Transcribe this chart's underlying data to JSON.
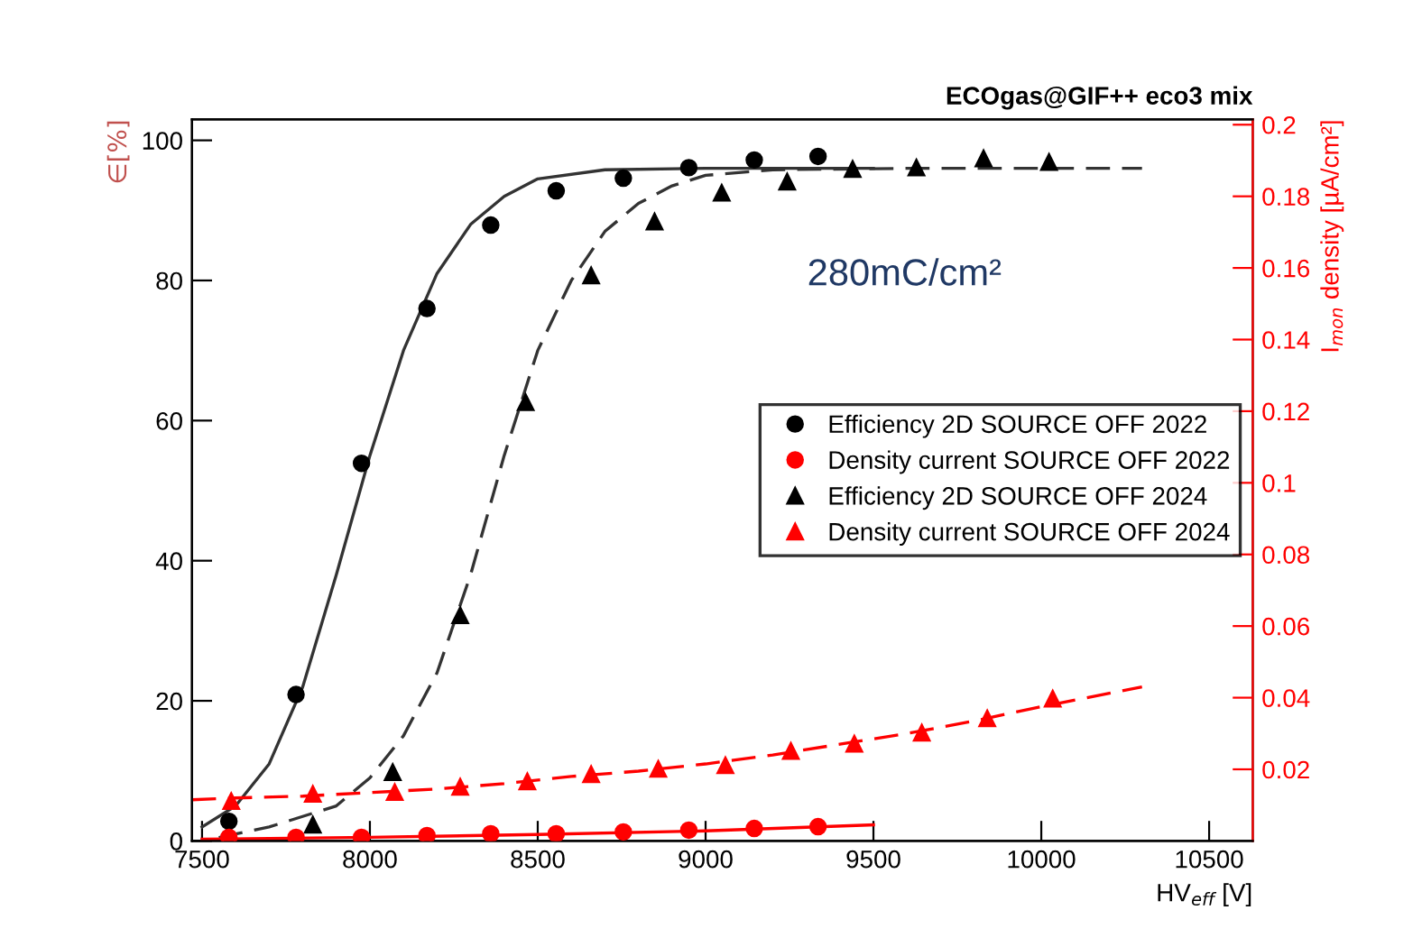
{
  "chart_data": {
    "type": "scatter",
    "title": "ECOgas@GIF++ eco3 mix",
    "xlabel": "HV$_{eff}$ [V]",
    "ylabel": "∈[%]",
    "y2label": "I$_{mon}$ density [µA/cm²]",
    "annotations": [
      "280mC/cm²"
    ],
    "xlim": [
      7470,
      10630
    ],
    "xticks": [
      7500,
      8000,
      8500,
      9000,
      9500,
      10000,
      10500
    ],
    "ylim": [
      0,
      103
    ],
    "yticks": [
      0,
      20,
      40,
      60,
      80,
      100
    ],
    "y2lim": [
      0,
      0.2015
    ],
    "y2ticks": [
      0.02,
      0.04,
      0.06,
      0.08,
      0.1,
      0.12,
      0.14,
      0.16,
      0.18,
      0.2
    ],
    "grid": false,
    "legend": "right",
    "series": [
      {
        "name": "Efficiency 2D SOURCE OFF 2022",
        "marker": "circle",
        "color": "#000000",
        "x": [
          7580,
          7780,
          7975,
          8170,
          8360,
          8555,
          8755,
          8950,
          9145,
          9335
        ],
        "values": [
          2.8,
          20.9,
          53.9,
          76.0,
          87.9,
          92.8,
          94.6,
          96.1,
          97.2,
          97.7
        ]
      },
      {
        "name": "Density current SOURCE OFF 2022",
        "marker": "circle",
        "color": "#ff0000",
        "axis": "y2",
        "x": [
          7580,
          7780,
          7975,
          8170,
          8360,
          8555,
          8755,
          8950,
          9145,
          9335
        ],
        "values": [
          0.001,
          0.001,
          0.001,
          0.0015,
          0.002,
          0.002,
          0.0025,
          0.003,
          0.0035,
          0.004
        ]
      },
      {
        "name": "Efficiency 2D SOURCE OFF 2024",
        "marker": "triangle",
        "color": "#000000",
        "x": [
          7830,
          8068,
          8269,
          8464,
          8659,
          8848,
          9048,
          9243,
          9438,
          9628,
          9828,
          10023
        ],
        "values": [
          2.3,
          9.8,
          32.2,
          62.6,
          80.7,
          88.4,
          92.5,
          94.1,
          95.9,
          96.1,
          97.4,
          96.9
        ]
      },
      {
        "name": "Density current SOURCE OFF 2024",
        "marker": "triangle",
        "color": "#ff0000",
        "axis": "y2",
        "x": [
          7587,
          7830,
          8074,
          8269,
          8469,
          8659,
          8859,
          9059,
          9254,
          9443,
          9644,
          9839,
          10034
        ],
        "values": [
          0.0111,
          0.0131,
          0.0136,
          0.0151,
          0.0166,
          0.0186,
          0.0201,
          0.0211,
          0.0251,
          0.0271,
          0.0302,
          0.0342,
          0.0397
        ]
      },
      {
        "type": "line",
        "line_style": "solid",
        "color": "#333333",
        "x": [
          7500,
          7600,
          7700,
          7800,
          7900,
          8000,
          8100,
          8200,
          8300,
          8400,
          8500,
          8700,
          9000,
          9500
        ],
        "values": [
          2,
          5,
          11,
          22,
          38,
          55,
          70,
          81,
          88,
          92,
          94.5,
          95.8,
          96,
          96
        ]
      },
      {
        "type": "line",
        "line_style": "dashed",
        "color": "#333333",
        "x": [
          7550,
          7700,
          7900,
          8000,
          8100,
          8200,
          8300,
          8400,
          8500,
          8600,
          8700,
          8800,
          8900,
          9000,
          9200,
          9600,
          10300
        ],
        "values": [
          0.5,
          2,
          5,
          9,
          15,
          24,
          38,
          55,
          70,
          80,
          87,
          91,
          93.5,
          95,
          95.8,
          96,
          96
        ]
      },
      {
        "type": "line",
        "line_style": "solid",
        "color": "#ff0000",
        "axis": "y2",
        "x": [
          7500,
          8000,
          8500,
          9000,
          9500
        ],
        "values": [
          0.0005,
          0.001,
          0.0018,
          0.0028,
          0.0045
        ]
      },
      {
        "type": "line",
        "line_style": "dashed",
        "color": "#ff0000",
        "axis": "y2",
        "x": [
          7470,
          7600,
          7800,
          8000,
          8200,
          8400,
          8600,
          8800,
          9000,
          9200,
          9400,
          9600,
          9800,
          10000,
          10300
        ],
        "values": [
          0.0115,
          0.012,
          0.0125,
          0.0135,
          0.0145,
          0.016,
          0.018,
          0.0195,
          0.0215,
          0.024,
          0.027,
          0.03,
          0.0335,
          0.0375,
          0.043
        ]
      }
    ]
  }
}
